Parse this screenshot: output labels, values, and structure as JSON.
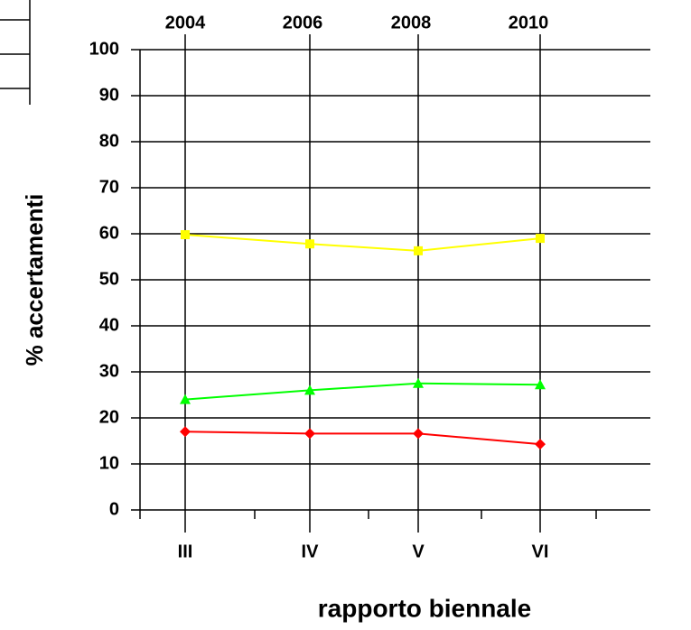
{
  "chart_data": {
    "type": "line",
    "categories": [
      "III",
      "IV",
      "V",
      "VI"
    ],
    "top_labels": [
      "2004",
      "2006",
      "2008",
      "2010"
    ],
    "xlabel": "rapporto biennale",
    "ylabel": "% accertamenti",
    "ylim": [
      0,
      100
    ],
    "yticks": [
      0,
      10,
      20,
      30,
      40,
      50,
      60,
      70,
      80,
      90,
      100
    ],
    "grid": true,
    "series": [
      {
        "color": "#ffff00",
        "marker": "square",
        "values": [
          59.8,
          57.8,
          56.3,
          59
        ]
      },
      {
        "color": "#00ff00",
        "marker": "triangle",
        "values": [
          24,
          26,
          27.5,
          27.2
        ]
      },
      {
        "color": "#ff0000",
        "marker": "diamond",
        "values": [
          17,
          16.6,
          16.6,
          14.3
        ]
      }
    ]
  }
}
